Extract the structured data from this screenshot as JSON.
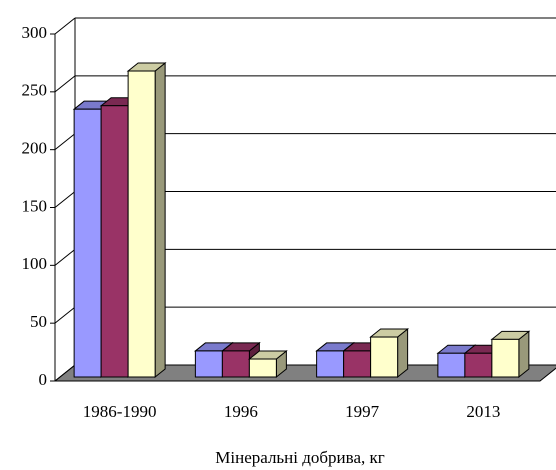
{
  "chart_data": {
    "type": "bar3d",
    "x_label": "Мінеральні добрива, кг",
    "categories": [
      "1986-1990",
      "1996",
      "1997",
      "2013"
    ],
    "series": [
      {
        "color": "#9999ff",
        "values": [
          235,
          26,
          26,
          24
        ]
      },
      {
        "color": "#993366",
        "values": [
          238,
          26,
          26,
          24
        ]
      },
      {
        "color": "#ffffcc",
        "values": [
          268,
          19,
          38,
          36
        ]
      }
    ],
    "ylim": [
      0,
      300
    ],
    "yticks": [
      0,
      50,
      100,
      150,
      200,
      250,
      300
    ],
    "grid": true
  }
}
